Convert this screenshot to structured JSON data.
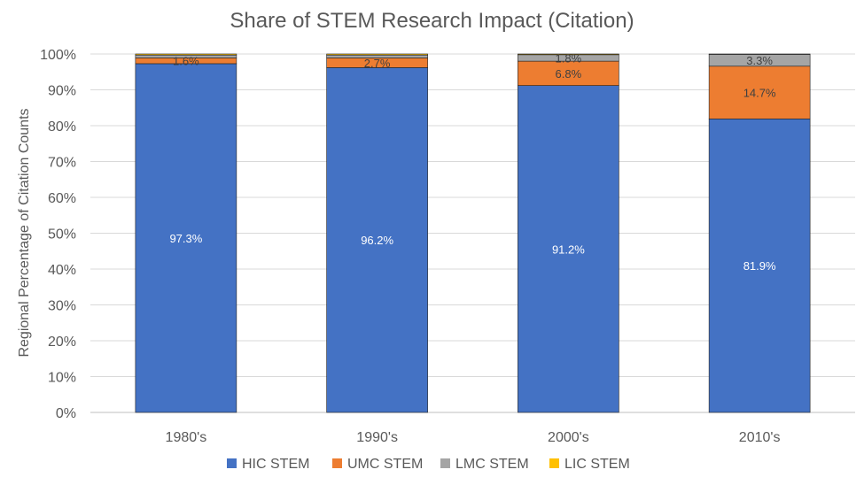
{
  "chart_data": {
    "type": "bar",
    "stacked": true,
    "title": "Share of STEM Research Impact (Citation)",
    "xlabel": "",
    "ylabel": "Regional Percentage of Citation Counts",
    "ylim": [
      0,
      100
    ],
    "y_ticks": [
      "0%",
      "10%",
      "20%",
      "30%",
      "40%",
      "50%",
      "60%",
      "70%",
      "80%",
      "90%",
      "100%"
    ],
    "categories": [
      "1980's",
      "1990's",
      "2000's",
      "2010's"
    ],
    "grid": true,
    "legend_position": "bottom",
    "series": [
      {
        "name": "HIC STEM",
        "color": "#4472C4",
        "label_color": "#ffffff",
        "values": [
          97.3,
          96.2,
          91.2,
          81.9
        ],
        "labels": [
          "97.3%",
          "96.2%",
          "91.2%",
          "81.9%"
        ]
      },
      {
        "name": "UMC STEM",
        "color": "#ED7D31",
        "label_color": "#404040",
        "values": [
          1.6,
          2.7,
          6.8,
          14.7
        ],
        "labels": [
          "1.6%",
          "2.7%",
          "6.8%",
          "14.7%"
        ]
      },
      {
        "name": "LMC STEM",
        "color": "#A5A5A5",
        "label_color": "#404040",
        "values": [
          0.8,
          0.8,
          1.8,
          3.3
        ],
        "labels": [
          "",
          "",
          "1.8%",
          "3.3%"
        ]
      },
      {
        "name": "LIC STEM",
        "color": "#FFC000",
        "label_color": "#404040",
        "values": [
          0.3,
          0.3,
          0.2,
          0.1
        ],
        "labels": [
          "",
          "",
          "",
          ""
        ]
      }
    ]
  }
}
